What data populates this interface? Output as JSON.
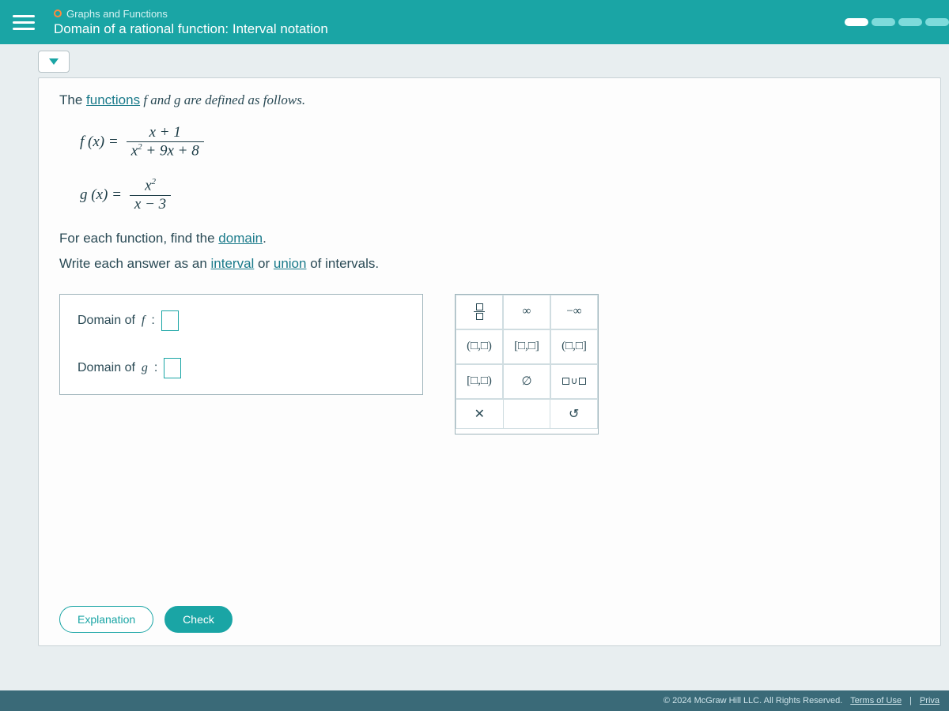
{
  "header": {
    "section": "Graphs and Functions",
    "title": "Domain of a rational function: Interval notation"
  },
  "prompt": {
    "intro_pre": "The ",
    "intro_link": "functions",
    "intro_post": " f and g are defined as follows.",
    "f_lhs": "f (x)  =",
    "f_num": "x + 1",
    "f_den_a": "x",
    "f_den_b": " + 9x + 8",
    "g_lhs": "g (x)  =",
    "g_num_a": "x",
    "g_den": "x − 3",
    "line2_pre": "For each function, find the ",
    "line2_link": "domain",
    "line2_post": ".",
    "line3_pre": "Write each answer as an ",
    "line3_link1": "interval",
    "line3_mid": " or ",
    "line3_link2": "union",
    "line3_post": " of intervals."
  },
  "answers": {
    "f_label_pre": "Domain of ",
    "f_sym": "f",
    "g_sym": "g",
    "colon": " :"
  },
  "palette": {
    "inf": "∞",
    "ninf": "−∞",
    "open": "(□,□)",
    "closed": "[□,□]",
    "half1": "(□,□]",
    "half2": "[□,□)",
    "empty": "∅"
  },
  "buttons": {
    "explanation": "Explanation",
    "check": "Check"
  },
  "footer": {
    "copyright": "© 2024 McGraw Hill LLC. All Rights Reserved.",
    "terms": "Terms of Use",
    "privacy": "Priva"
  }
}
